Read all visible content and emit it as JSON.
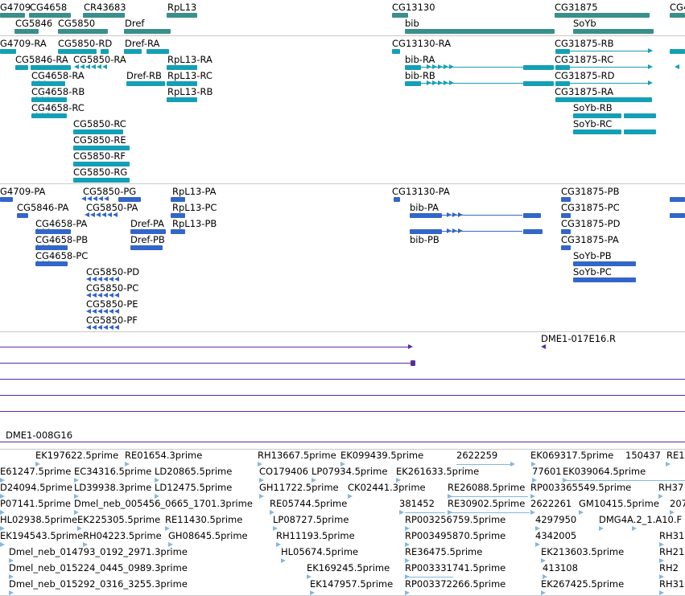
{
  "colors": {
    "gene": "#3a8f8c",
    "transcript": "#14a0b4",
    "protein": "#3366c8",
    "clone": "#5a2d9e",
    "est": "#86b7dc",
    "separator": "#c8c8c8"
  },
  "tracks": {
    "genes": [
      {
        "label": "G4709"
      },
      {
        "label": "CG4658"
      },
      {
        "label": "CR43683"
      },
      {
        "label": "RpL13"
      },
      {
        "label": "CG13130"
      },
      {
        "label": "CG31875"
      },
      {
        "label": "CG4"
      },
      {
        "label": "CG5846"
      },
      {
        "label": "CG5850"
      },
      {
        "label": "Dref"
      },
      {
        "label": "bib"
      },
      {
        "label": "SoYb"
      }
    ],
    "transcripts": [
      {
        "label": "G4709-RA"
      },
      {
        "label": "CG5850-RD"
      },
      {
        "label": "Dref-RA"
      },
      {
        "label": "CG13130-RA"
      },
      {
        "label": "CG31875-RB"
      },
      {
        "label": "CG5846-RA"
      },
      {
        "label": "CG5850-RA"
      },
      {
        "label": "RpL13-RA"
      },
      {
        "label": "bib-RA"
      },
      {
        "label": "CG31875-RC"
      },
      {
        "label": "CG4658-RA"
      },
      {
        "label": "Dref-RB"
      },
      {
        "label": "RpL13-RC"
      },
      {
        "label": "bib-RB"
      },
      {
        "label": "CG31875-RD"
      },
      {
        "label": "CG4658-RB"
      },
      {
        "label": "RpL13-RB"
      },
      {
        "label": "CG31875-RA"
      },
      {
        "label": "CG4658-RC"
      },
      {
        "label": "SoYb-RB"
      },
      {
        "label": "CG5850-RC"
      },
      {
        "label": "SoYb-RC"
      },
      {
        "label": "CG5850-RE"
      },
      {
        "label": "CG5850-RF"
      },
      {
        "label": "CG5850-RG"
      }
    ],
    "proteins": [
      {
        "label": "G4709-PA"
      },
      {
        "label": "CG5850-PG"
      },
      {
        "label": "RpL13-PA"
      },
      {
        "label": "CG13130-PA"
      },
      {
        "label": "CG31875-PB"
      },
      {
        "label": "CG5846-PA"
      },
      {
        "label": "CG5850-PA"
      },
      {
        "label": "RpL13-PC"
      },
      {
        "label": "bib-PA"
      },
      {
        "label": "CG31875-PC"
      },
      {
        "label": "CG4658-PA"
      },
      {
        "label": "Dref-PA"
      },
      {
        "label": "RpL13-PB"
      },
      {
        "label": "CG31875-PD"
      },
      {
        "label": "CG4658-PB"
      },
      {
        "label": "Dref-PB"
      },
      {
        "label": "bib-PB"
      },
      {
        "label": "CG31875-PA"
      },
      {
        "label": "CG4658-PC"
      },
      {
        "label": "SoYb-PB"
      },
      {
        "label": "CG5850-PD"
      },
      {
        "label": "SoYb-PC"
      },
      {
        "label": "CG5850-PC"
      },
      {
        "label": "CG5850-PE"
      },
      {
        "label": "CG5850-PF"
      }
    ],
    "clones": [
      {
        "label": "DME1-017E16.R"
      },
      {
        "label": "DME1-008G16"
      }
    ],
    "ests": [
      {
        "label": "EK197622.5prime"
      },
      {
        "label": "RE01654.3prime"
      },
      {
        "label": "RH13667.5prime"
      },
      {
        "label": "EK099439.5prime"
      },
      {
        "label": "2622259"
      },
      {
        "label": "EK069317.5prime"
      },
      {
        "label": "150437"
      },
      {
        "label": "RE1"
      },
      {
        "label": "E61247.5prime"
      },
      {
        "label": "EC34316.5prime"
      },
      {
        "label": "LD20865.5prime"
      },
      {
        "label": "CO179406"
      },
      {
        "label": "LP07934.5prime"
      },
      {
        "label": "EK261633.5prime"
      },
      {
        "label": "77601"
      },
      {
        "label": "EK039064.5prime"
      },
      {
        "label": "D24094.5prime"
      },
      {
        "label": "LD39938.3prime"
      },
      {
        "label": "LD12475.5prime"
      },
      {
        "label": "GH11722.5prime"
      },
      {
        "label": "CK02441.3prime"
      },
      {
        "label": "RE26088.5prime"
      },
      {
        "label": "RP003365549.5prime"
      },
      {
        "label": "RH37"
      },
      {
        "label": "P07141.5prime"
      },
      {
        "label": "Dmel_neb_005456_0665_1701.3prime"
      },
      {
        "label": "RE05744.5prime"
      },
      {
        "label": "381452"
      },
      {
        "label": "RE30902.5prime"
      },
      {
        "label": "2622261"
      },
      {
        "label": "GM10415.5prime"
      },
      {
        "label": "207"
      },
      {
        "label": "HL02938.5prime"
      },
      {
        "label": "EK225305.5prime"
      },
      {
        "label": "RE11430.5prime"
      },
      {
        "label": "LP08727.5prime"
      },
      {
        "label": "RP003256759.5prime"
      },
      {
        "label": "4297950"
      },
      {
        "label": "DMG4A.2_1.A10.F"
      },
      {
        "label": "EK194543.5prime"
      },
      {
        "label": "RH04223.5prime"
      },
      {
        "label": "GH08645.5prime"
      },
      {
        "label": "RH11193.5prime"
      },
      {
        "label": "RP003495870.5prime"
      },
      {
        "label": "4342005"
      },
      {
        "label": "RH31"
      },
      {
        "label": "Dmel_neb_014793_0192_2971.3prime"
      },
      {
        "label": "HL05674.5prime"
      },
      {
        "label": "RE36475.5prime"
      },
      {
        "label": "EK213603.5prime"
      },
      {
        "label": "RH21"
      },
      {
        "label": "Dmel_neb_015224_0445_0989.3prime"
      },
      {
        "label": "EK169245.5prime"
      },
      {
        "label": "RP003331741.5prime"
      },
      {
        "label": "413108"
      },
      {
        "label": "RH2"
      },
      {
        "label": "Dmel_neb_015292_0316_3255.3prime"
      },
      {
        "label": "EK147957.5prime"
      },
      {
        "label": "RP003372266.5prime"
      },
      {
        "label": "EK267425.5prime"
      },
      {
        "label": "RH31"
      }
    ]
  }
}
